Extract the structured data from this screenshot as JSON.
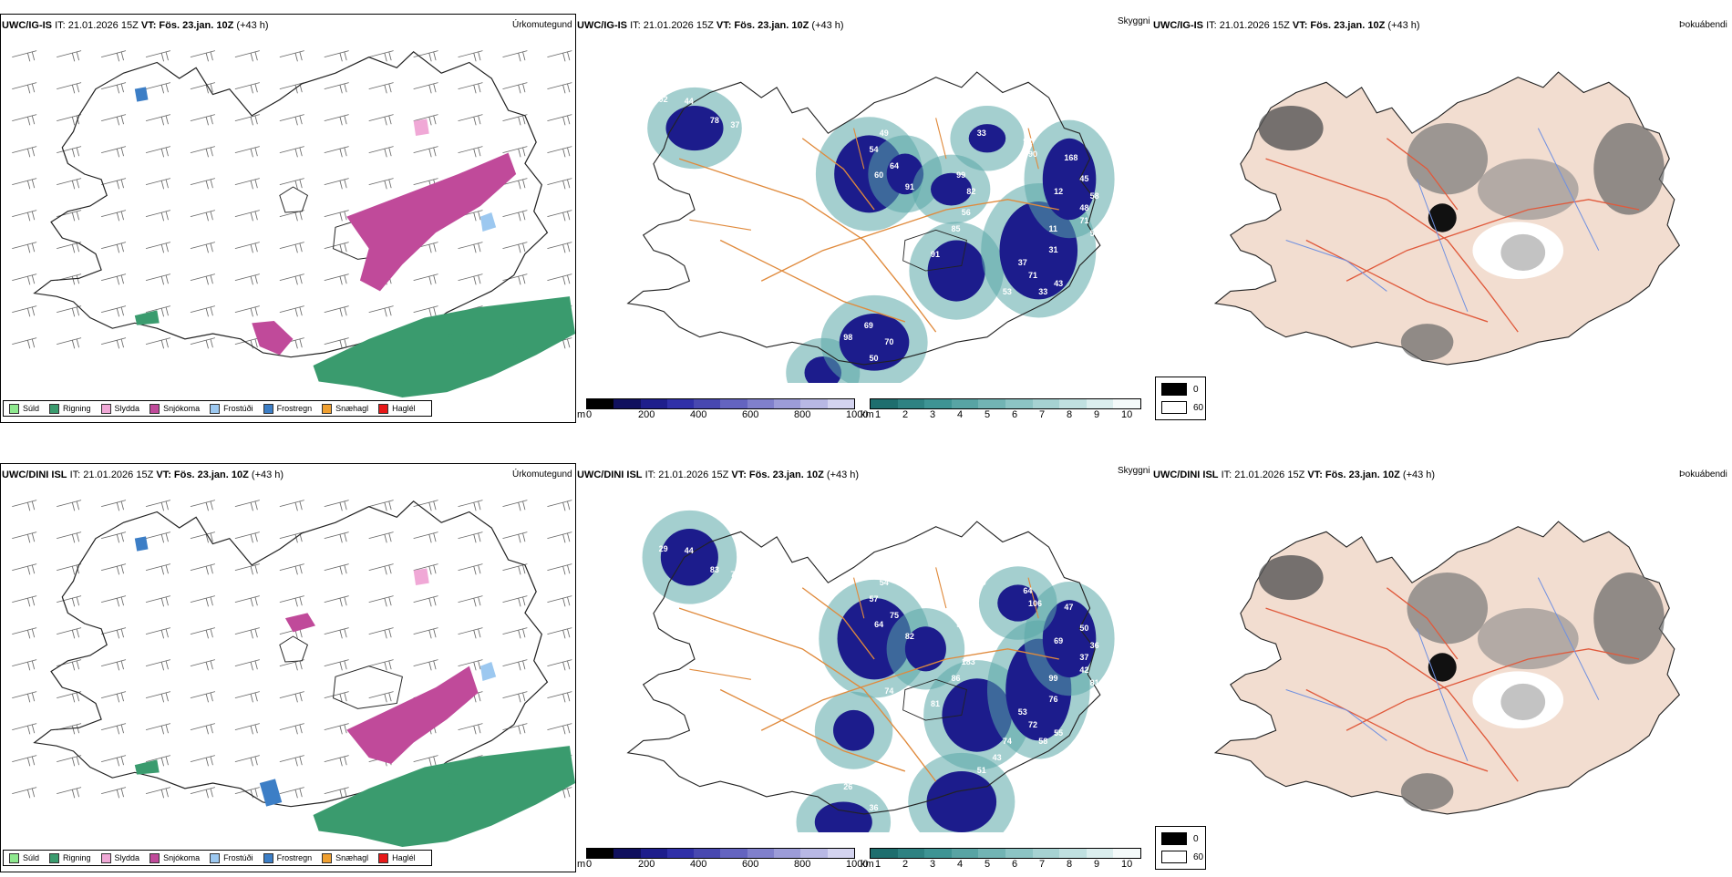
{
  "header_common": {
    "it": "IT: 21.01.2026 15Z",
    "vt": "VT: Fös. 23.jan. 10Z",
    "lead": "(+43 h)"
  },
  "rows": [
    {
      "model": "UWC/IG-IS",
      "labels": [
        "53",
        "92",
        "44",
        "78",
        "37",
        "49",
        "54",
        "64",
        "60",
        "91",
        "99",
        "82",
        "56",
        "85",
        "91",
        "74",
        "33",
        "92",
        "90",
        "168",
        "45",
        "12",
        "58",
        "48",
        "71",
        "11",
        "57",
        "31",
        "37",
        "71",
        "43",
        "33",
        "53",
        "45",
        "30",
        "69",
        "98",
        "70",
        "50"
      ]
    },
    {
      "model": "UWC/DINI ISL",
      "labels": [
        "10",
        "29",
        "44",
        "83",
        "76",
        "54",
        "57",
        "75",
        "64",
        "82",
        "90",
        "105",
        "183",
        "86",
        "81",
        "74",
        "39",
        "64",
        "106",
        "47",
        "50",
        "69",
        "36",
        "37",
        "42",
        "99",
        "81",
        "76",
        "53",
        "72",
        "55",
        "58",
        "74",
        "43",
        "51",
        "70",
        "26",
        "22",
        "36"
      ]
    }
  ],
  "panel_titles": {
    "precip": "Úrkomutegund",
    "vis": "Skyggni",
    "fog": "Þokuábendi"
  },
  "precip_legend": [
    {
      "label": "Súld",
      "color": "#8ee88e"
    },
    {
      "label": "Rigning",
      "color": "#3a9b6e"
    },
    {
      "label": "Slydda",
      "color": "#f0a8d6"
    },
    {
      "label": "Snjókoma",
      "color": "#c04a9a"
    },
    {
      "label": "Frostúði",
      "color": "#9cc8f0"
    },
    {
      "label": "Frostregn",
      "color": "#3c7ec6"
    },
    {
      "label": "Snæhagl",
      "color": "#f0a030"
    },
    {
      "label": "Haglél",
      "color": "#e81818"
    }
  ],
  "cbar_m": {
    "unit": "m",
    "ticks": [
      "0",
      "200",
      "400",
      "600",
      "800",
      "1000"
    ],
    "colors": [
      "#000000",
      "#10105e",
      "#1e1e8c",
      "#3030a8",
      "#4848b0",
      "#6464c0",
      "#8080cc",
      "#9c9cd8",
      "#b8b8e4",
      "#d4d4f0"
    ]
  },
  "cbar_km": {
    "unit": "km",
    "ticks": [
      "1",
      "2",
      "3",
      "4",
      "5",
      "6",
      "7",
      "8",
      "9",
      "10"
    ],
    "colors": [
      "#1e6e6e",
      "#2e8282",
      "#3e9494",
      "#58a4a4",
      "#72b4b4",
      "#8cc4c4",
      "#a6d2d2",
      "#c0e0e0",
      "#dbeeee",
      "#f4fafa"
    ]
  },
  "fog_legend": {
    "values": [
      "0",
      "60"
    ],
    "colors": [
      "#000000",
      "#ffffff"
    ]
  }
}
